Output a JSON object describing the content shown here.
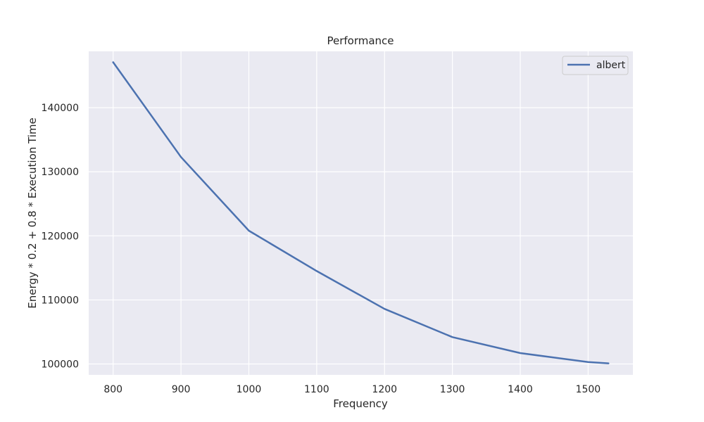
{
  "chart_data": {
    "type": "line",
    "title": "Performance",
    "xlabel": "Frequency",
    "ylabel": "Energy * 0.2 + 0.8 * Execution Time",
    "xlim": [
      764,
      1566
    ],
    "ylim": [
      98300,
      148800
    ],
    "xticks": [
      800,
      900,
      1000,
      1100,
      1200,
      1300,
      1400,
      1500
    ],
    "yticks": [
      100000,
      110000,
      120000,
      130000,
      140000
    ],
    "xtick_labels": [
      "800",
      "900",
      "1000",
      "1100",
      "1200",
      "1300",
      "1400",
      "1500"
    ],
    "ytick_labels": [
      "100000",
      "110000",
      "120000",
      "130000",
      "140000"
    ],
    "grid": true,
    "legend_position": "top-right",
    "colors": {
      "plot_background": "#eaeaf2",
      "grid": "#ffffff",
      "series": "#4c72b0",
      "text": "#262626"
    },
    "series": [
      {
        "name": "albert",
        "x": [
          800,
          900,
          1000,
          1100,
          1200,
          1300,
          1400,
          1500,
          1530
        ],
        "y": [
          147100,
          132300,
          120800,
          114500,
          108600,
          104200,
          101700,
          100300,
          100100
        ]
      }
    ]
  }
}
